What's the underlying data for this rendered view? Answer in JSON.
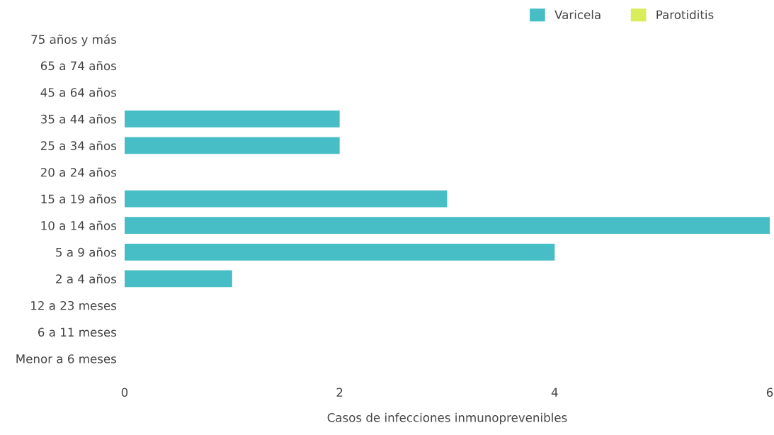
{
  "chart_data": {
    "type": "bar",
    "orientation": "horizontal",
    "stacked": true,
    "categories": [
      "75 años y más",
      "65 a 74 años",
      "45 a 64 años",
      "35 a 44 años",
      "25 a 34 años",
      "20 a 24 años",
      "15 a 19 años",
      "10 a 14 años",
      "5 a 9 años",
      "2 a 4 años",
      "12 a 23 meses",
      "6 a 11 meses",
      "Menor a 6 meses"
    ],
    "series": [
      {
        "name": "Varicela",
        "color": "#47bdc6",
        "values": [
          0,
          0,
          0,
          2,
          2,
          0,
          3,
          6,
          4,
          1,
          0,
          0,
          0
        ]
      },
      {
        "name": "Parotiditis",
        "color": "#d9ec5a",
        "values": [
          0,
          0,
          0,
          0,
          0,
          0,
          0,
          0,
          0,
          0,
          0,
          0,
          0
        ]
      }
    ],
    "xlabel": "Casos de infecciones inmunoprevenibles",
    "xlim": [
      0,
      6
    ],
    "xticks": [
      0,
      2,
      4,
      6
    ],
    "grid": false,
    "legend": "top right"
  }
}
